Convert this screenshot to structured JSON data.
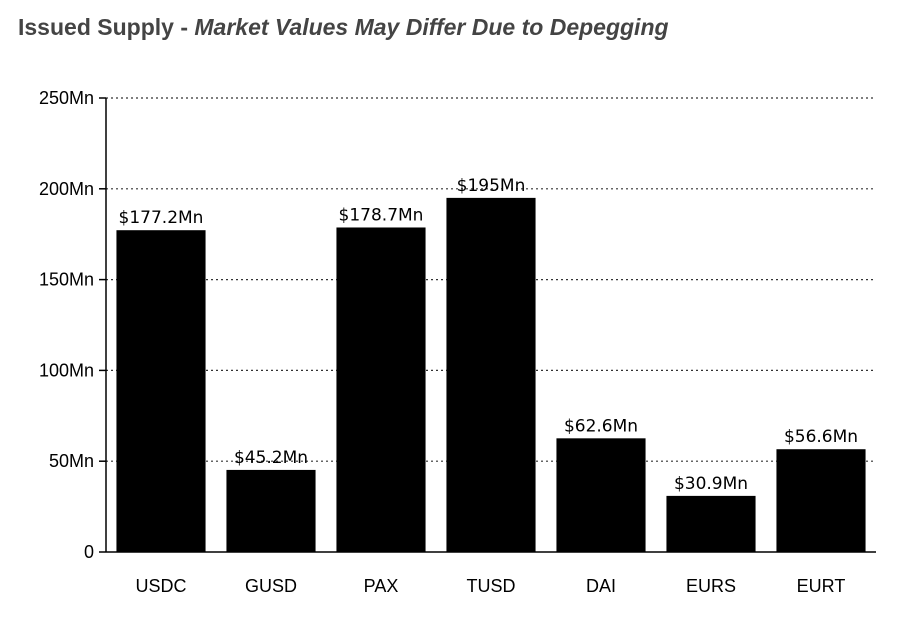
{
  "header": {
    "title_main": "Issued Supply - ",
    "title_sub": "Market Values May Differ Due to Depegging"
  },
  "chart_data": {
    "type": "bar",
    "title": "Issued Supply - Market Values May Differ Due to Depegging",
    "xlabel": "",
    "ylabel": "",
    "ylim": [
      0,
      250
    ],
    "grid": "horizontal-dotted",
    "bar_color": "#000000",
    "categories": [
      "USDC",
      "GUSD",
      "PAX",
      "TUSD",
      "DAI",
      "EURS",
      "EURT"
    ],
    "values": [
      177.2,
      45.2,
      178.7,
      195,
      62.6,
      30.9,
      56.6
    ],
    "data_labels": [
      "$177.2Mn",
      "$45.2Mn",
      "$178.7Mn",
      "$195Mn",
      "$62.6Mn",
      "$30.9Mn",
      "$56.6Mn"
    ],
    "y_ticks": [
      {
        "value": 0,
        "label": "0"
      },
      {
        "value": 50,
        "label": "50Mn"
      },
      {
        "value": 100,
        "label": "100Mn"
      },
      {
        "value": 150,
        "label": "150Mn"
      },
      {
        "value": 200,
        "label": "200Mn"
      },
      {
        "value": 250,
        "label": "250Mn"
      }
    ]
  }
}
